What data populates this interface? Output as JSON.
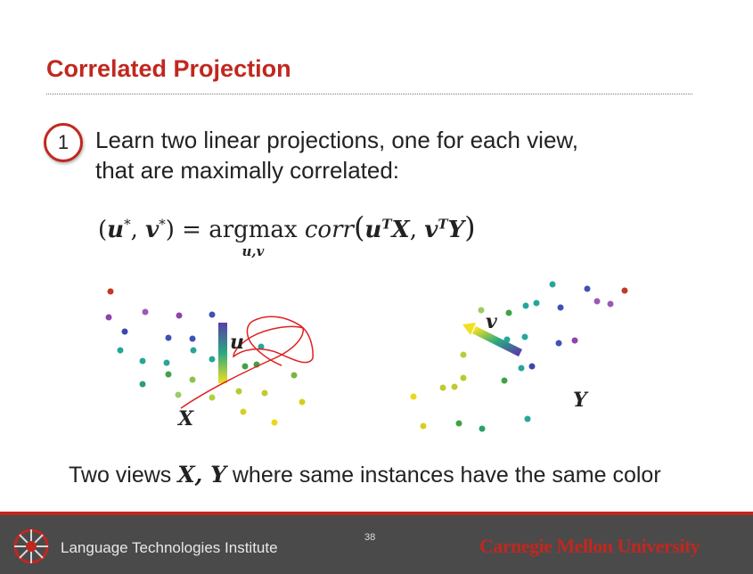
{
  "slide": {
    "title": "Correlated Projection",
    "step_number": "1",
    "step_line1": "Learn two linear projections, one for each view,",
    "step_line2": "that are maximally correlated:"
  },
  "formula": {
    "lhs_open": "(",
    "u": "u",
    "star": "*",
    "comma": ",",
    "v": "v",
    "lhs_close": ")",
    "equals": "=",
    "operator": "argmax",
    "operator_sub": "u,v",
    "func": "corr",
    "arg_open": "(",
    "T": "T",
    "X": "X",
    "Y": "Y",
    "arg_close": ")"
  },
  "figure": {
    "left_view_label": "X",
    "left_vector_label": "u",
    "right_view_label": "Y",
    "right_vector_label": "v"
  },
  "caption": {
    "prefix": "Two views ",
    "math": "X, Y",
    "suffix": " where same instances have the same color"
  },
  "footer": {
    "institute": "Language Technologies Institute",
    "page_number": "38",
    "university": "Carnegie Mellon University"
  },
  "colors": {
    "accent": "#c0281f",
    "footer_bg": "#4a4a4a",
    "text": "#222222"
  },
  "icons": [
    "step-number-circle",
    "lti-logo-icon"
  ]
}
